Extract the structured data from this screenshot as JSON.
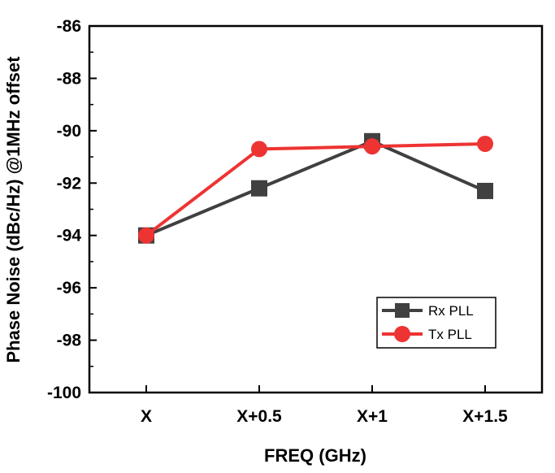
{
  "chart_data": {
    "type": "line",
    "categories": [
      "X",
      "X+0.5",
      "X+1",
      "X+1.5"
    ],
    "series": [
      {
        "name": "Rx PLL",
        "values": [
          -94.0,
          -92.2,
          -90.4,
          -92.3
        ],
        "color": "#404040",
        "marker": "square"
      },
      {
        "name": "Tx PLL",
        "values": [
          -94.0,
          -90.7,
          -90.6,
          -90.5
        ],
        "color": "#ee3333",
        "marker": "circle"
      }
    ],
    "xlabel": "FREQ (GHz)",
    "ylabel": "Phase Noise (dBc/Hz) @1MHz offset",
    "ylim": [
      -100,
      -86
    ],
    "yticks": [
      -86,
      -88,
      -90,
      -92,
      -94,
      -96,
      -98,
      -100
    ],
    "ytick_labels": [
      "-86",
      "-88",
      "-90",
      "-92",
      "-94",
      "-96",
      "-98",
      "-100"
    ],
    "grid": false,
    "legend_position": "lower-right"
  }
}
